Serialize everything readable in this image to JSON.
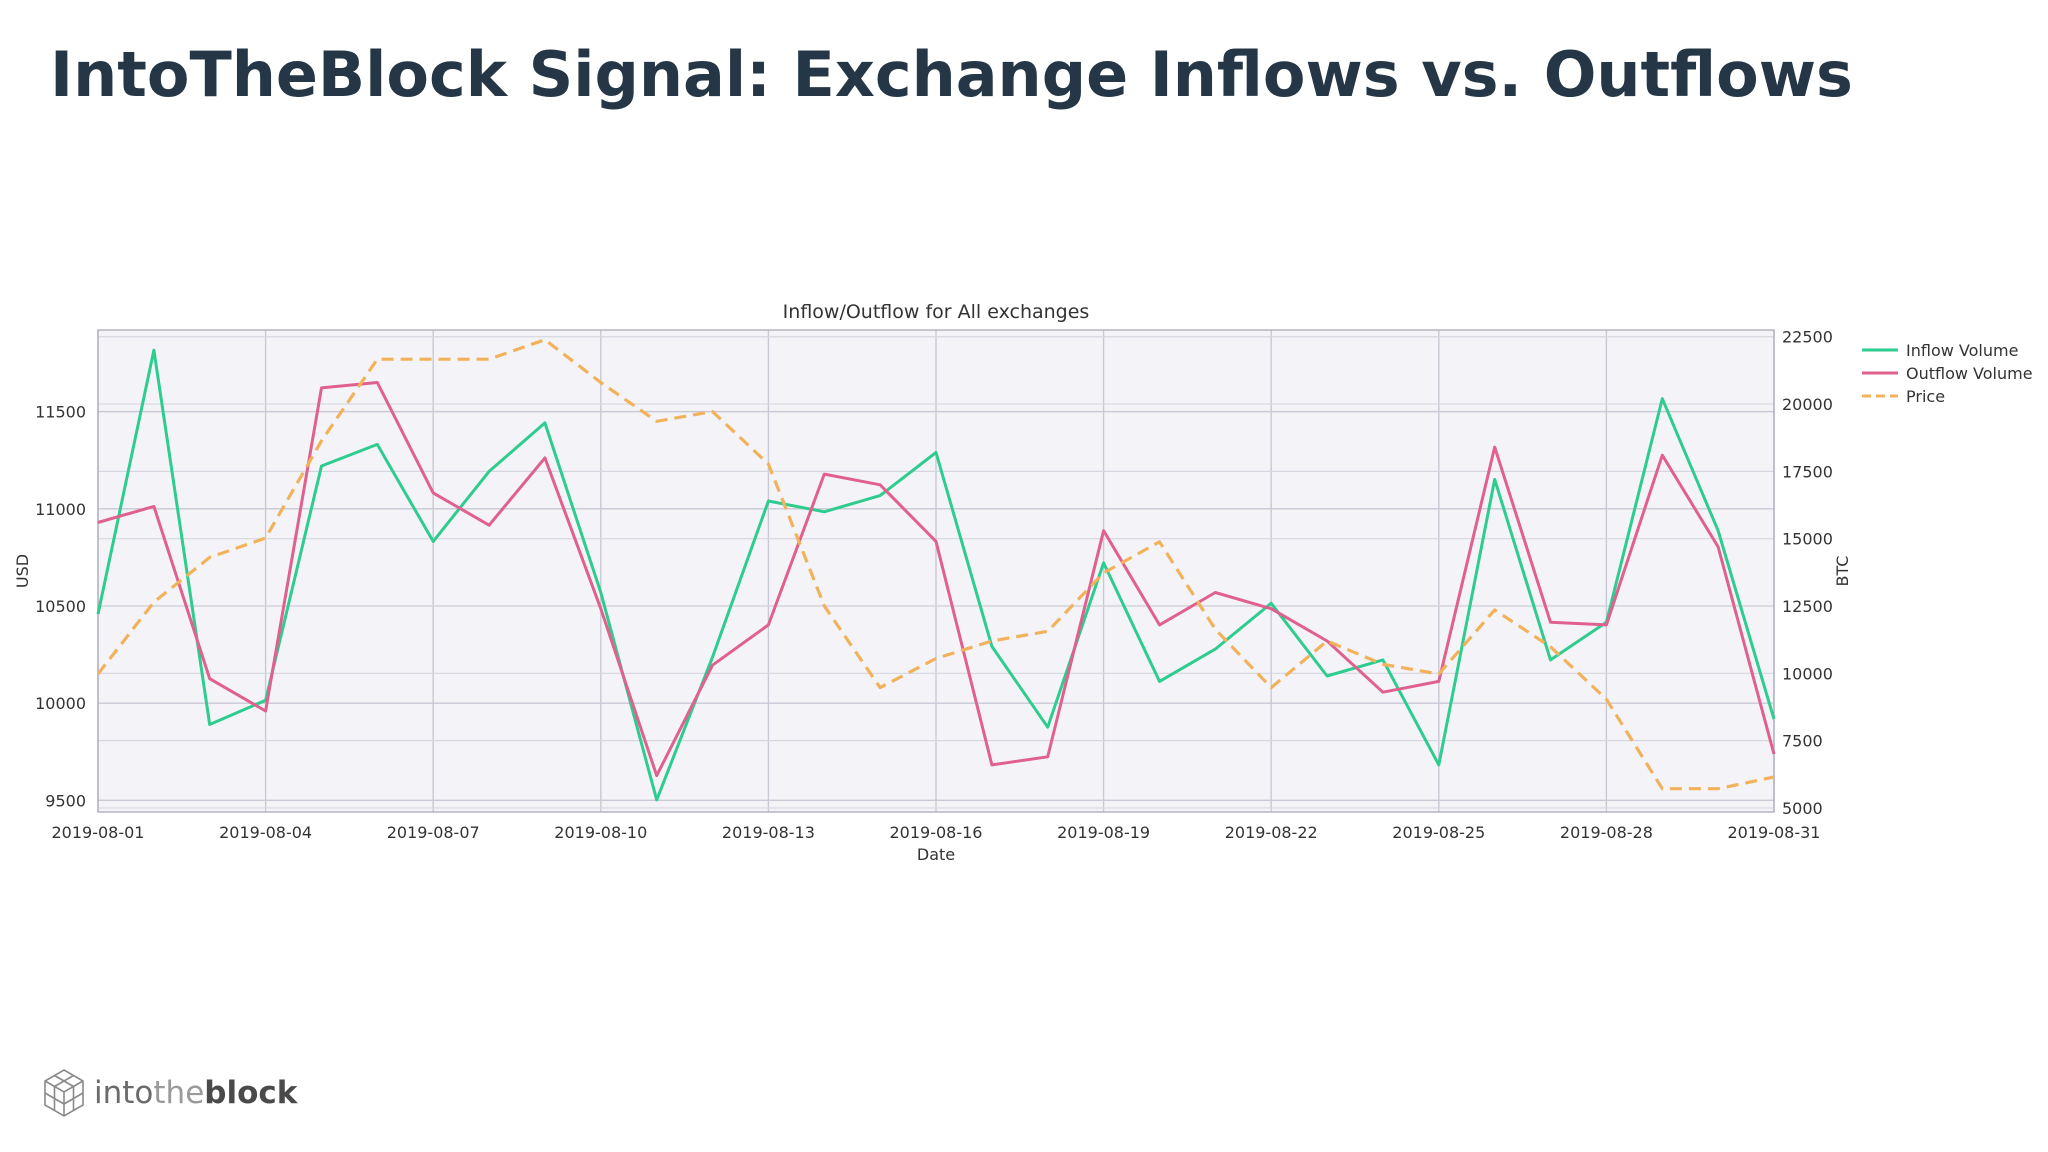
{
  "slide": {
    "title": "IntoTheBlock Signal: Exchange Inflows vs. Outflows"
  },
  "brand": {
    "part1": "into",
    "part2": "the",
    "part3": "block",
    "icon": "cube-logo-icon"
  },
  "chart_data": {
    "type": "line",
    "title": "Inflow/Outflow for All exchanges",
    "xlabel": "Date",
    "ylabel_left": "USD",
    "ylabel_right": "BTC",
    "grid": true,
    "legend_position": "outside-right-top",
    "x_ticks": [
      "2019-08-01",
      "2019-08-04",
      "2019-08-07",
      "2019-08-10",
      "2019-08-13",
      "2019-08-16",
      "2019-08-19",
      "2019-08-22",
      "2019-08-25",
      "2019-08-28",
      "2019-08-31"
    ],
    "left_axis": {
      "ticks": [
        9500,
        10000,
        10500,
        11000,
        11500
      ],
      "range": [
        9440,
        11920
      ]
    },
    "right_axis": {
      "ticks": [
        5000,
        7500,
        10000,
        12500,
        15000,
        17500,
        20000,
        22500
      ],
      "range": [
        4850,
        22750
      ]
    },
    "dates": [
      "2019-08-01",
      "2019-08-02",
      "2019-08-03",
      "2019-08-04",
      "2019-08-05",
      "2019-08-06",
      "2019-08-07",
      "2019-08-08",
      "2019-08-09",
      "2019-08-10",
      "2019-08-11",
      "2019-08-12",
      "2019-08-13",
      "2019-08-14",
      "2019-08-15",
      "2019-08-16",
      "2019-08-17",
      "2019-08-18",
      "2019-08-19",
      "2019-08-20",
      "2019-08-21",
      "2019-08-22",
      "2019-08-23",
      "2019-08-24",
      "2019-08-25",
      "2019-08-26",
      "2019-08-27",
      "2019-08-28",
      "2019-08-29",
      "2019-08-30",
      "2019-08-31"
    ],
    "series": [
      {
        "name": "Inflow Volume",
        "axis": "right",
        "color": "#2ecc8f",
        "style": "solid",
        "values": [
          12200,
          22000,
          8100,
          9000,
          17700,
          18500,
          14900,
          17500,
          19300,
          13000,
          5300,
          10600,
          16400,
          16000,
          16600,
          18200,
          11000,
          8000,
          14100,
          9700,
          10900,
          12600,
          9900,
          10500,
          6600,
          17200,
          10500,
          11900,
          20200,
          15300,
          8300
        ]
      },
      {
        "name": "Outflow Volume",
        "axis": "right",
        "color": "#e0608e",
        "style": "solid",
        "values": [
          15600,
          16200,
          9800,
          8600,
          20600,
          20800,
          16700,
          15500,
          18000,
          12400,
          6200,
          10300,
          11800,
          17400,
          17000,
          14900,
          6600,
          6900,
          15300,
          11800,
          13000,
          12400,
          11200,
          9300,
          9700,
          18400,
          11900,
          11800,
          18100,
          14700,
          7000
        ]
      },
      {
        "name": "Price",
        "axis": "left",
        "color": "#f2b25c",
        "style": "dashed",
        "values": [
          10150,
          10520,
          10750,
          10850,
          11350,
          11770,
          11770,
          11770,
          11870,
          11650,
          11450,
          11500,
          11230,
          10500,
          10080,
          10230,
          10320,
          10370,
          10670,
          10830,
          10380,
          10080,
          10320,
          10200,
          10150,
          10480,
          10290,
          10020,
          9560,
          9560,
          9620
        ]
      }
    ]
  }
}
